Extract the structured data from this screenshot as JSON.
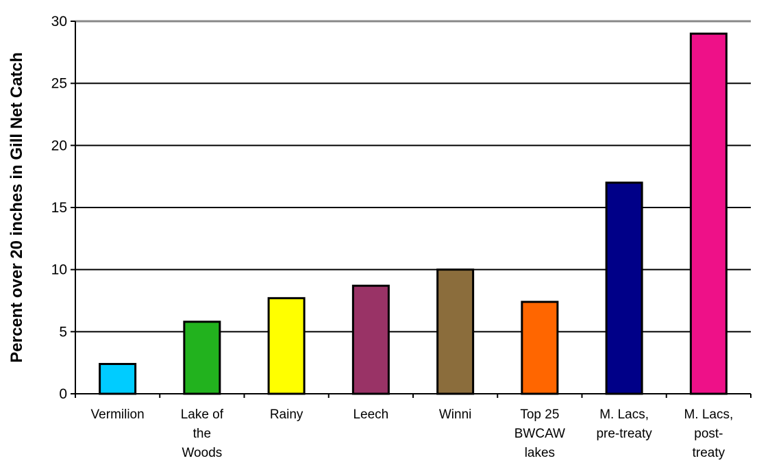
{
  "chart_data": {
    "type": "bar",
    "title": "",
    "xlabel": "",
    "ylabel": "Percent over 20 inches in Gill Net Catch",
    "ylim": [
      0,
      30
    ],
    "yticks": [
      0,
      5,
      10,
      15,
      20,
      25,
      30
    ],
    "grid": true,
    "legend": "none",
    "categories": [
      {
        "label": [
          "Vermilion"
        ],
        "value": 2.4,
        "color": "#00CCFF"
      },
      {
        "label": [
          "Lake of",
          "the",
          "Woods"
        ],
        "value": 5.8,
        "color": "#22B21E"
      },
      {
        "label": [
          "Rainy"
        ],
        "value": 7.7,
        "color": "#FFFF00"
      },
      {
        "label": [
          "Leech"
        ],
        "value": 8.7,
        "color": "#993366"
      },
      {
        "label": [
          "Winni"
        ],
        "value": 10.0,
        "color": "#8B6D3C"
      },
      {
        "label": [
          "Top 25",
          "BWCAW",
          "lakes"
        ],
        "value": 7.4,
        "color": "#FF6600"
      },
      {
        "label": [
          "M. Lacs,",
          "pre-treaty"
        ],
        "value": 17.0,
        "color": "#000088"
      },
      {
        "label": [
          "M. Lacs,",
          "post-",
          "treaty"
        ],
        "value": 29.0,
        "color": "#EE1188"
      }
    ]
  }
}
